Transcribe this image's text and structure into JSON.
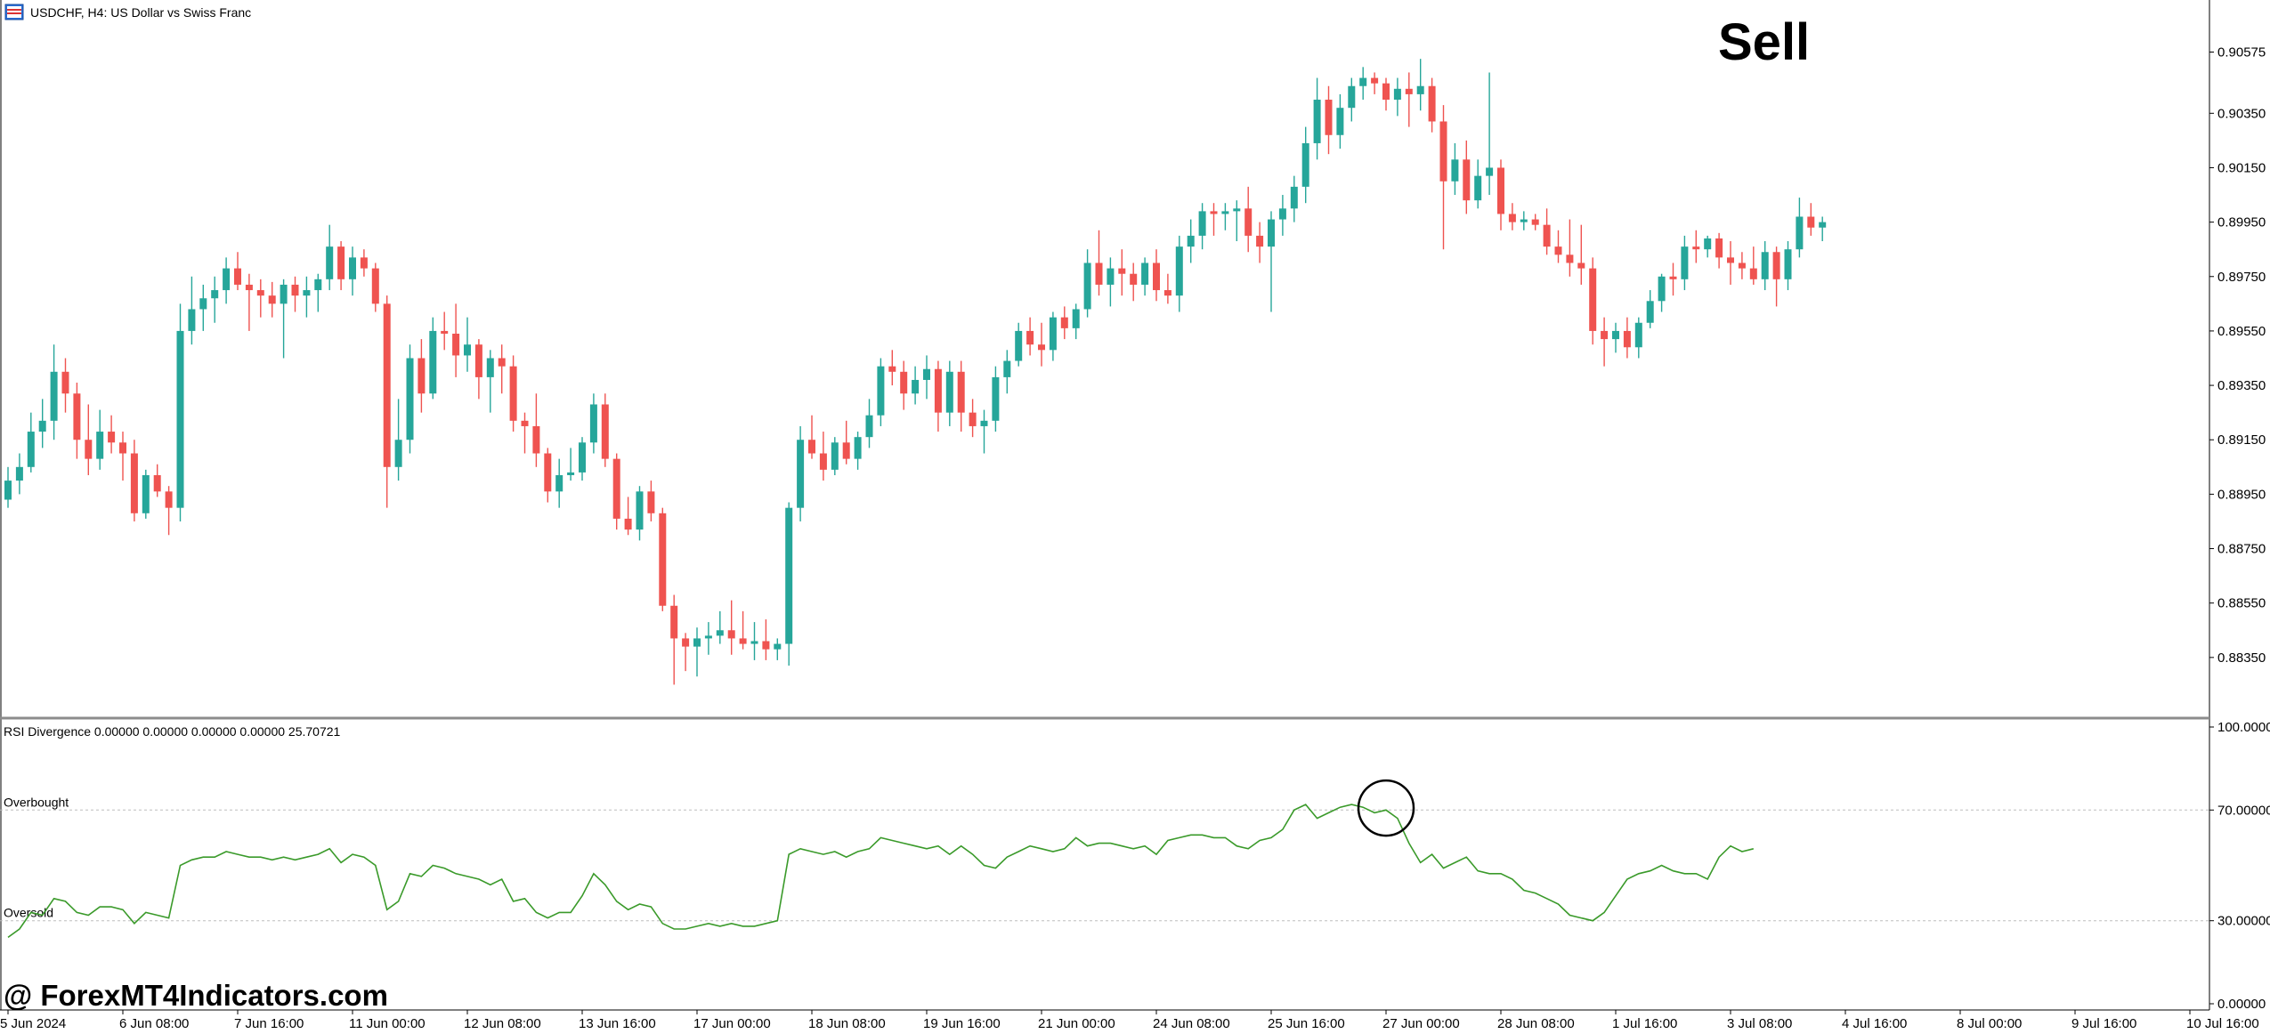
{
  "window": {
    "title": "USDCHF, H4:  US Dollar vs Swiss Franc",
    "icon": "chart-window-icon"
  },
  "indicator": {
    "label": "RSI Divergence 0.00000 0.00000 0.00000 0.00000 25.70721",
    "overbought_label": "Overbought",
    "oversold_label": "Oversold",
    "overbought_level": 70,
    "oversold_level": 30,
    "scale_labels": [
      "100.00000",
      "70.00000",
      "30.00000",
      "0.00000"
    ]
  },
  "annotations": {
    "signal": "Sell",
    "watermark": "@ ForexMT4Indicators.com"
  },
  "colors": {
    "bull": "#26a69a",
    "bear": "#ef5350",
    "rsi_line": "#3a9a2a",
    "level_line": "#bdbdbd"
  },
  "chart_data": {
    "type": "candlestick",
    "symbol": "USDCHF",
    "timeframe": "H4",
    "y_axis": {
      "range": [
        0.8815,
        0.9075
      ],
      "tick_labels": [
        "0.90575",
        "0.90350",
        "0.90150",
        "0.89950",
        "0.89750",
        "0.89550",
        "0.89350",
        "0.89150",
        "0.88950",
        "0.88750",
        "0.88550",
        "0.88350"
      ]
    },
    "x_axis": {
      "tick_labels": [
        "5 Jun 2024",
        "6 Jun 08:00",
        "7 Jun 16:00",
        "11 Jun 00:00",
        "12 Jun 08:00",
        "13 Jun 16:00",
        "17 Jun 00:00",
        "18 Jun 08:00",
        "19 Jun 16:00",
        "21 Jun 00:00",
        "24 Jun 08:00",
        "25 Jun 16:00",
        "27 Jun 00:00",
        "28 Jun 08:00",
        "1 Jul 16:00",
        "3 Jul 08:00",
        "4 Jul 16:00",
        "8 Jul 00:00",
        "9 Jul 16:00",
        "10 Jul 16:00"
      ],
      "tick_bars": [
        0,
        10,
        20,
        30,
        40,
        50,
        60,
        70,
        80,
        90,
        100,
        110,
        120,
        130,
        140,
        150,
        160,
        170,
        180,
        190
      ]
    },
    "ohlc": [
      [
        0.8893,
        0.8905,
        0.889,
        0.89
      ],
      [
        0.89,
        0.891,
        0.8895,
        0.8905
      ],
      [
        0.8905,
        0.8925,
        0.8903,
        0.8918
      ],
      [
        0.8918,
        0.893,
        0.8912,
        0.8922
      ],
      [
        0.8922,
        0.895,
        0.8915,
        0.894
      ],
      [
        0.894,
        0.8945,
        0.8925,
        0.8932
      ],
      [
        0.8932,
        0.8936,
        0.8908,
        0.8915
      ],
      [
        0.8915,
        0.8928,
        0.8902,
        0.8908
      ],
      [
        0.8908,
        0.8926,
        0.8904,
        0.8918
      ],
      [
        0.8918,
        0.8924,
        0.891,
        0.8914
      ],
      [
        0.8914,
        0.8918,
        0.89,
        0.891
      ],
      [
        0.891,
        0.8915,
        0.8885,
        0.8888
      ],
      [
        0.8888,
        0.8904,
        0.8886,
        0.8902
      ],
      [
        0.8902,
        0.8906,
        0.8894,
        0.8896
      ],
      [
        0.8896,
        0.8898,
        0.888,
        0.889
      ],
      [
        0.889,
        0.8965,
        0.8885,
        0.8955
      ],
      [
        0.8955,
        0.8975,
        0.895,
        0.8963
      ],
      [
        0.8963,
        0.8972,
        0.8955,
        0.8967
      ],
      [
        0.8967,
        0.8975,
        0.8958,
        0.897
      ],
      [
        0.897,
        0.8982,
        0.8965,
        0.8978
      ],
      [
        0.8978,
        0.8984,
        0.897,
        0.8972
      ],
      [
        0.8972,
        0.8976,
        0.8955,
        0.897
      ],
      [
        0.897,
        0.8974,
        0.896,
        0.8968
      ],
      [
        0.8968,
        0.8973,
        0.896,
        0.8965
      ],
      [
        0.8965,
        0.8974,
        0.8945,
        0.8972
      ],
      [
        0.8972,
        0.8975,
        0.8962,
        0.8968
      ],
      [
        0.8968,
        0.8975,
        0.896,
        0.897
      ],
      [
        0.897,
        0.8976,
        0.8962,
        0.8974
      ],
      [
        0.8974,
        0.8994,
        0.897,
        0.8986
      ],
      [
        0.8986,
        0.8988,
        0.897,
        0.8974
      ],
      [
        0.8974,
        0.8986,
        0.8968,
        0.8982
      ],
      [
        0.8982,
        0.8985,
        0.8975,
        0.8978
      ],
      [
        0.8978,
        0.898,
        0.8962,
        0.8965
      ],
      [
        0.8965,
        0.8968,
        0.889,
        0.8905
      ],
      [
        0.8905,
        0.893,
        0.89,
        0.8915
      ],
      [
        0.8915,
        0.895,
        0.891,
        0.8945
      ],
      [
        0.8945,
        0.8952,
        0.8925,
        0.8932
      ],
      [
        0.8932,
        0.896,
        0.893,
        0.8955
      ],
      [
        0.8955,
        0.8962,
        0.8948,
        0.8954
      ],
      [
        0.8954,
        0.8965,
        0.8938,
        0.8946
      ],
      [
        0.8946,
        0.896,
        0.894,
        0.895
      ],
      [
        0.895,
        0.8952,
        0.893,
        0.8938
      ],
      [
        0.8938,
        0.8948,
        0.8925,
        0.8945
      ],
      [
        0.8945,
        0.895,
        0.8932,
        0.8942
      ],
      [
        0.8942,
        0.8946,
        0.8918,
        0.8922
      ],
      [
        0.8922,
        0.8925,
        0.891,
        0.892
      ],
      [
        0.892,
        0.8932,
        0.8905,
        0.891
      ],
      [
        0.891,
        0.8912,
        0.8892,
        0.8896
      ],
      [
        0.8896,
        0.8908,
        0.889,
        0.8902
      ],
      [
        0.8902,
        0.8912,
        0.89,
        0.8903
      ],
      [
        0.8903,
        0.8916,
        0.89,
        0.8914
      ],
      [
        0.8914,
        0.8932,
        0.891,
        0.8928
      ],
      [
        0.8928,
        0.8932,
        0.8905,
        0.8908
      ],
      [
        0.8908,
        0.891,
        0.8882,
        0.8886
      ],
      [
        0.8886,
        0.8894,
        0.888,
        0.8882
      ],
      [
        0.8882,
        0.8898,
        0.8878,
        0.8896
      ],
      [
        0.8896,
        0.89,
        0.8885,
        0.8888
      ],
      [
        0.8888,
        0.889,
        0.8852,
        0.8854
      ],
      [
        0.8854,
        0.8858,
        0.8825,
        0.8842
      ],
      [
        0.8842,
        0.8844,
        0.883,
        0.8839
      ],
      [
        0.8839,
        0.8846,
        0.8828,
        0.8842
      ],
      [
        0.8842,
        0.8848,
        0.8836,
        0.8843
      ],
      [
        0.8843,
        0.8852,
        0.884,
        0.8845
      ],
      [
        0.8845,
        0.8856,
        0.8836,
        0.8842
      ],
      [
        0.8842,
        0.8852,
        0.8838,
        0.884
      ],
      [
        0.884,
        0.8848,
        0.8834,
        0.8841
      ],
      [
        0.8841,
        0.8849,
        0.8834,
        0.8838
      ],
      [
        0.8838,
        0.8842,
        0.8834,
        0.884
      ],
      [
        0.884,
        0.8892,
        0.8832,
        0.889
      ],
      [
        0.889,
        0.892,
        0.8885,
        0.8915
      ],
      [
        0.8915,
        0.8924,
        0.8908,
        0.891
      ],
      [
        0.891,
        0.8918,
        0.89,
        0.8904
      ],
      [
        0.8904,
        0.8916,
        0.8902,
        0.8914
      ],
      [
        0.8914,
        0.8922,
        0.8906,
        0.8908
      ],
      [
        0.8908,
        0.8918,
        0.8904,
        0.8916
      ],
      [
        0.8916,
        0.893,
        0.8912,
        0.8924
      ],
      [
        0.8924,
        0.8945,
        0.892,
        0.8942
      ],
      [
        0.8942,
        0.8948,
        0.8935,
        0.894
      ],
      [
        0.894,
        0.8944,
        0.8926,
        0.8932
      ],
      [
        0.8932,
        0.8942,
        0.8928,
        0.8937
      ],
      [
        0.8937,
        0.8946,
        0.893,
        0.8941
      ],
      [
        0.8941,
        0.8944,
        0.8918,
        0.8925
      ],
      [
        0.8925,
        0.8944,
        0.892,
        0.894
      ],
      [
        0.894,
        0.8944,
        0.8918,
        0.8925
      ],
      [
        0.8925,
        0.893,
        0.8916,
        0.892
      ],
      [
        0.892,
        0.8926,
        0.891,
        0.8922
      ],
      [
        0.8922,
        0.8942,
        0.8918,
        0.8938
      ],
      [
        0.8938,
        0.8948,
        0.8932,
        0.8944
      ],
      [
        0.8944,
        0.8958,
        0.8942,
        0.8955
      ],
      [
        0.8955,
        0.896,
        0.8946,
        0.895
      ],
      [
        0.895,
        0.8958,
        0.8942,
        0.8948
      ],
      [
        0.8948,
        0.8962,
        0.8944,
        0.896
      ],
      [
        0.896,
        0.8964,
        0.8952,
        0.8956
      ],
      [
        0.8956,
        0.8965,
        0.8952,
        0.8963
      ],
      [
        0.8963,
        0.8985,
        0.896,
        0.898
      ],
      [
        0.898,
        0.8992,
        0.8968,
        0.8972
      ],
      [
        0.8972,
        0.8982,
        0.8964,
        0.8978
      ],
      [
        0.8978,
        0.8985,
        0.8968,
        0.8976
      ],
      [
        0.8976,
        0.898,
        0.8966,
        0.8972
      ],
      [
        0.8972,
        0.8982,
        0.8968,
        0.898
      ],
      [
        0.898,
        0.8985,
        0.8966,
        0.897
      ],
      [
        0.897,
        0.8976,
        0.8965,
        0.8968
      ],
      [
        0.8968,
        0.899,
        0.8962,
        0.8986
      ],
      [
        0.8986,
        0.8996,
        0.898,
        0.899
      ],
      [
        0.899,
        0.9002,
        0.8985,
        0.8999
      ],
      [
        0.8999,
        0.9002,
        0.899,
        0.8998
      ],
      [
        0.8998,
        0.9002,
        0.8992,
        0.8999
      ],
      [
        0.8999,
        0.9003,
        0.8988,
        0.9
      ],
      [
        0.9,
        0.9008,
        0.8984,
        0.899
      ],
      [
        0.899,
        0.8995,
        0.898,
        0.8986
      ],
      [
        0.8986,
        0.8999,
        0.8962,
        0.8996
      ],
      [
        0.8996,
        0.9005,
        0.899,
        0.9
      ],
      [
        0.9,
        0.9012,
        0.8995,
        0.9008
      ],
      [
        0.9008,
        0.903,
        0.9002,
        0.9024
      ],
      [
        0.9024,
        0.9048,
        0.9018,
        0.904
      ],
      [
        0.904,
        0.9045,
        0.902,
        0.9027
      ],
      [
        0.9027,
        0.9042,
        0.9022,
        0.9037
      ],
      [
        0.9037,
        0.9048,
        0.9032,
        0.9045
      ],
      [
        0.9045,
        0.9052,
        0.904,
        0.9048
      ],
      [
        0.9048,
        0.905,
        0.9042,
        0.9046
      ],
      [
        0.9046,
        0.9048,
        0.9036,
        0.904
      ],
      [
        0.904,
        0.9048,
        0.9034,
        0.9044
      ],
      [
        0.9044,
        0.905,
        0.903,
        0.9042
      ],
      [
        0.9042,
        0.9055,
        0.9036,
        0.9045
      ],
      [
        0.9045,
        0.9048,
        0.9028,
        0.9032
      ],
      [
        0.9032,
        0.9038,
        0.8985,
        0.901
      ],
      [
        0.901,
        0.9024,
        0.9005,
        0.9018
      ],
      [
        0.9018,
        0.9025,
        0.8998,
        0.9003
      ],
      [
        0.9003,
        0.9018,
        0.9,
        0.9012
      ],
      [
        0.9012,
        0.905,
        0.9005,
        0.9015
      ],
      [
        0.9015,
        0.9018,
        0.8992,
        0.8998
      ],
      [
        0.8998,
        0.9002,
        0.8992,
        0.8995
      ],
      [
        0.8995,
        0.8999,
        0.8992,
        0.8996
      ],
      [
        0.8996,
        0.8998,
        0.8992,
        0.8994
      ],
      [
        0.8994,
        0.9,
        0.8983,
        0.8986
      ],
      [
        0.8986,
        0.8992,
        0.898,
        0.8983
      ],
      [
        0.8983,
        0.8996,
        0.8975,
        0.898
      ],
      [
        0.898,
        0.8994,
        0.8972,
        0.8978
      ],
      [
        0.8978,
        0.8982,
        0.895,
        0.8955
      ],
      [
        0.8955,
        0.896,
        0.8942,
        0.8952
      ],
      [
        0.8952,
        0.8958,
        0.8947,
        0.8955
      ],
      [
        0.8955,
        0.896,
        0.8945,
        0.8949
      ],
      [
        0.8949,
        0.896,
        0.8945,
        0.8958
      ],
      [
        0.8958,
        0.897,
        0.8956,
        0.8966
      ],
      [
        0.8966,
        0.8976,
        0.8962,
        0.8975
      ],
      [
        0.8975,
        0.898,
        0.8968,
        0.8974
      ],
      [
        0.8974,
        0.899,
        0.897,
        0.8986
      ],
      [
        0.8986,
        0.8992,
        0.898,
        0.8985
      ],
      [
        0.8985,
        0.899,
        0.8982,
        0.8989
      ],
      [
        0.8989,
        0.8991,
        0.8978,
        0.8982
      ],
      [
        0.8982,
        0.8988,
        0.8972,
        0.898
      ],
      [
        0.898,
        0.8984,
        0.8974,
        0.8978
      ],
      [
        0.8978,
        0.8986,
        0.8972,
        0.8974
      ],
      [
        0.8974,
        0.8988,
        0.897,
        0.8984
      ],
      [
        0.8984,
        0.8986,
        0.8964,
        0.8974
      ],
      [
        0.8974,
        0.8988,
        0.897,
        0.8985
      ],
      [
        0.8985,
        0.9004,
        0.8982,
        0.8997
      ],
      [
        0.8997,
        0.9002,
        0.899,
        0.8993
      ],
      [
        0.8993,
        0.8997,
        0.8988,
        0.8995
      ]
    ],
    "rsi": [
      24,
      27,
      33,
      32,
      38,
      37,
      33,
      32,
      35,
      35,
      34,
      29,
      33,
      32,
      31,
      50,
      52,
      53,
      53,
      55,
      54,
      53,
      53,
      52,
      53,
      52,
      53,
      54,
      56,
      51,
      54,
      53,
      50,
      34,
      37,
      47,
      46,
      50,
      49,
      47,
      46,
      45,
      43,
      45,
      37,
      38,
      33,
      31,
      33,
      33,
      39,
      47,
      43,
      37,
      34,
      36,
      35,
      29,
      27,
      27,
      28,
      29,
      28,
      29,
      28,
      28,
      29,
      30,
      54,
      56,
      55,
      54,
      55,
      53,
      55,
      56,
      60,
      59,
      58,
      57,
      56,
      57,
      54,
      57,
      54,
      50,
      49,
      53,
      55,
      57,
      56,
      55,
      56,
      60,
      57,
      58,
      58,
      57,
      56,
      57,
      54,
      59,
      60,
      61,
      61,
      60,
      60,
      57,
      56,
      59,
      60,
      63,
      70,
      72,
      67,
      69,
      71,
      72,
      71,
      69,
      70,
      67,
      58,
      51,
      54,
      49,
      51,
      53,
      48,
      47,
      47,
      45,
      41,
      40,
      38,
      36,
      32,
      31,
      30,
      33,
      39,
      45,
      47,
      48,
      50,
      48,
      47,
      47,
      45,
      53,
      57,
      55,
      56
    ]
  }
}
